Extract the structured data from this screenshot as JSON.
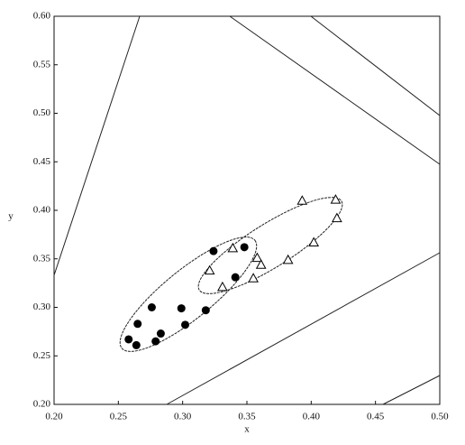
{
  "chart_data": {
    "type": "scatter",
    "xlabel": "x",
    "ylabel": "y",
    "xlim": [
      0.2,
      0.5
    ],
    "xticks": [
      {
        "value": 0.2,
        "label": "0.20"
      },
      {
        "value": 0.25,
        "label": "0.25"
      },
      {
        "value": 0.3,
        "label": "0.30"
      },
      {
        "value": 0.35,
        "label": "0.35"
      },
      {
        "value": 0.4,
        "label": "0.40"
      },
      {
        "value": 0.45,
        "label": "0.45"
      },
      {
        "value": 0.5,
        "label": "0.50"
      }
    ],
    "ylim": [
      0.2,
      0.6
    ],
    "yticks": [
      {
        "value": 0.2,
        "label": "0.20"
      },
      {
        "value": 0.25,
        "label": "0.25"
      },
      {
        "value": 0.3,
        "label": "0.30"
      },
      {
        "value": 0.35,
        "label": "0.35"
      },
      {
        "value": 0.4,
        "label": "0.40"
      },
      {
        "value": 0.45,
        "label": "0.45"
      },
      {
        "value": 0.5,
        "label": "0.50"
      },
      {
        "value": 0.55,
        "label": "0.55"
      },
      {
        "value": 0.6,
        "label": "0.60"
      }
    ],
    "series": [
      {
        "marker": "circle",
        "color": "#000000",
        "x": [
          0.258,
          0.264,
          0.265,
          0.276,
          0.279,
          0.283,
          0.299,
          0.302,
          0.318,
          0.324,
          0.341,
          0.348
        ],
        "values": [
          0.267,
          0.261,
          0.283,
          0.3,
          0.265,
          0.273,
          0.299,
          0.282,
          0.297,
          0.358,
          0.331,
          0.362
        ]
      },
      {
        "marker": "triangle",
        "color": "#000000",
        "x": [
          0.339,
          0.321,
          0.331,
          0.358,
          0.361,
          0.355,
          0.382,
          0.402,
          0.393,
          0.419,
          0.42
        ],
        "values": [
          0.361,
          0.338,
          0.321,
          0.351,
          0.344,
          0.33,
          0.349,
          0.367,
          0.41,
          0.411,
          0.392
        ]
      }
    ]
  }
}
